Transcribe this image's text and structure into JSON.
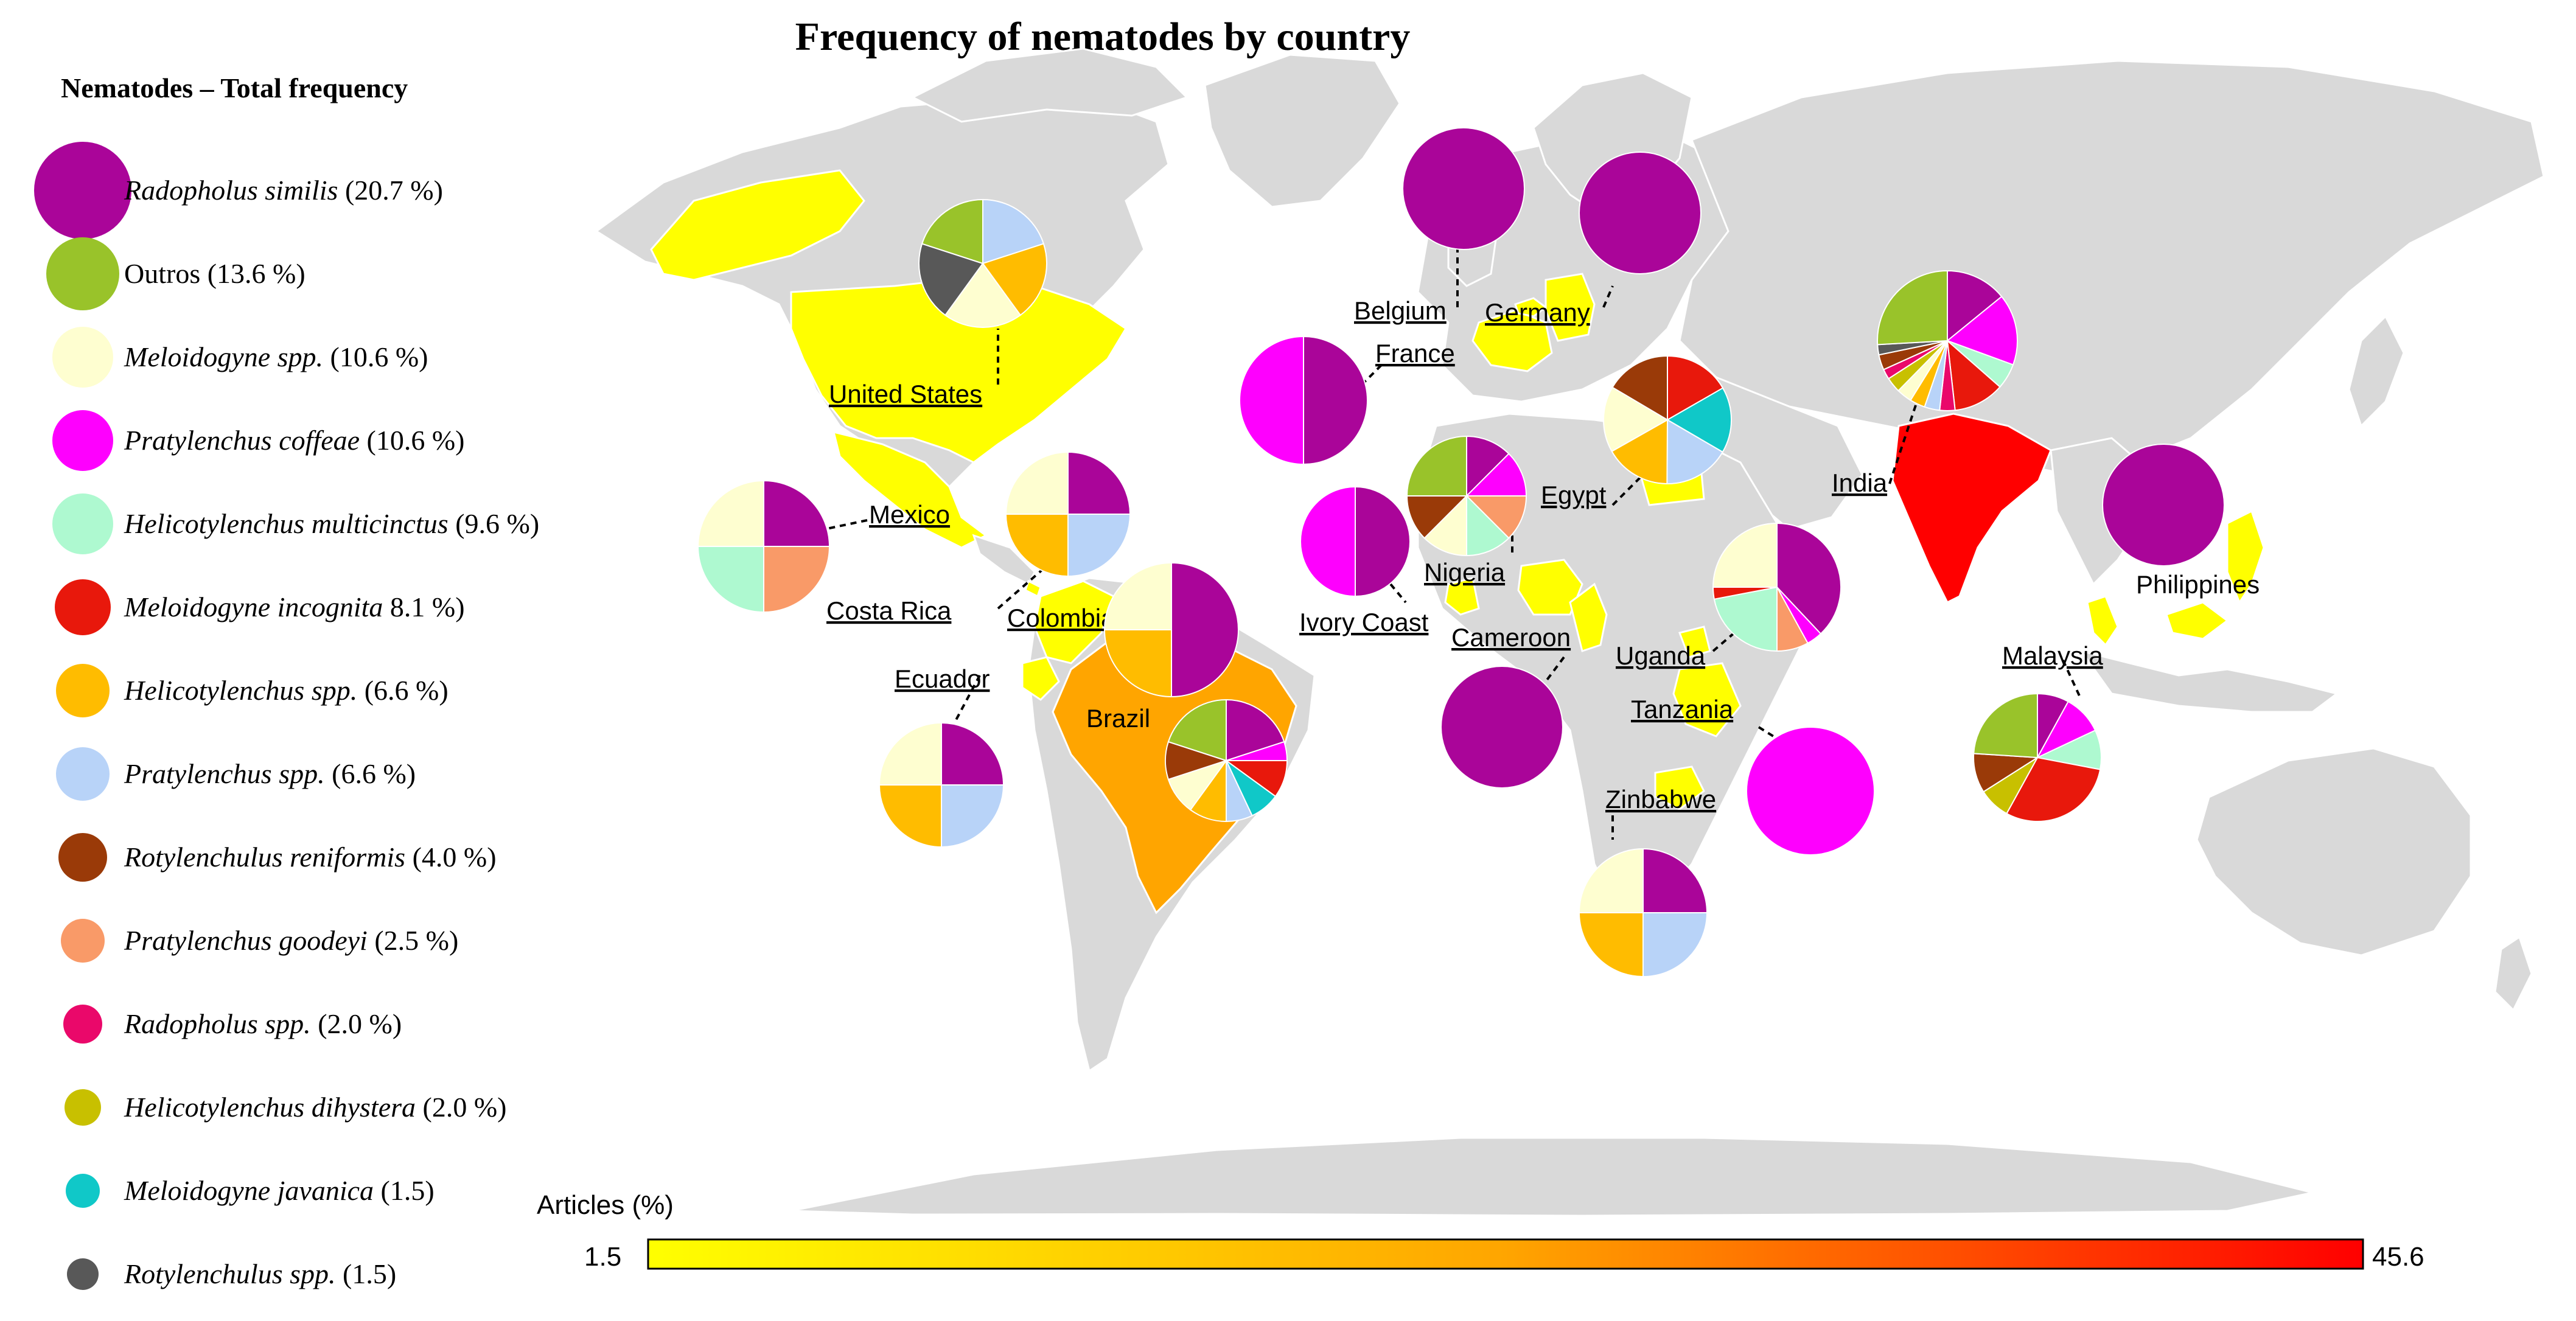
{
  "title": "Frequency of nematodes by country",
  "legend": {
    "heading": "Nematodes – Total frequency",
    "items": [
      {
        "name": "Radopholus similis",
        "pct": "(20.7 %)",
        "color": "#aa0599",
        "italic": true
      },
      {
        "name": "Outros",
        "pct": "(13.6 %)",
        "color": "#99c32a",
        "italic": false
      },
      {
        "name": "Meloidogyne spp.",
        "pct": "(10.6 %)",
        "color": "#fefed0",
        "italic": true
      },
      {
        "name": "Pratylenchus coffeae",
        "pct": "(10.6 %)",
        "color": "#fe00fe",
        "italic": true
      },
      {
        "name": "Helicotylenchus multicinctus",
        "pct": "(9.6 %)",
        "color": "#aef9d0",
        "italic": true
      },
      {
        "name": "Meloidogyne incognita",
        "pct": "8.1 %)",
        "color": "#e8180c",
        "italic": true
      },
      {
        "name": "Helicotylenchus spp.",
        "pct": "(6.6 %)",
        "color": "#ffbc00",
        "italic": true
      },
      {
        "name": "Pratylenchus spp.",
        "pct": "(6.6 %)",
        "color": "#b8d3f8",
        "italic": true
      },
      {
        "name": "Rotylenchulus reniformis",
        "pct": "(4.0 %)",
        "color": "#9a3a08",
        "italic": true
      },
      {
        "name": "Pratylenchus goodeyi",
        "pct": "(2.5 %)",
        "color": "#f99a68",
        "italic": true
      },
      {
        "name": "Radopholus spp.",
        "pct": "(2.0 %)",
        "color": "#ea086a",
        "italic": true
      },
      {
        "name": "Helicotylenchus dihystera",
        "pct": "(2.0 %)",
        "color": "#c8c000",
        "italic": true
      },
      {
        "name": "Meloidogyne javanica",
        "pct": "(1.5)",
        "color": "#10c8c8",
        "italic": true
      },
      {
        "name": "Rotylenchulus spp.",
        "pct": "(1.5)",
        "color": "#585858",
        "italic": true
      }
    ]
  },
  "colorbar": {
    "title": "Articles (%)",
    "min_label": "1.5",
    "max_label": "45.6",
    "min": 1.5,
    "max": 45.6,
    "gradient_start": "#ffff00",
    "gradient_mid": "#ffa500",
    "gradient_end": "#ff0000"
  },
  "map": {
    "ocean": "#ffffff",
    "land": "#d9d9d9",
    "border": "#ffffff",
    "highlight_low": "#ffff00",
    "highlight_mid": "#ffa500",
    "highlight_high": "#ff0000"
  },
  "countries": [
    {
      "name": "United States",
      "fill": "low",
      "value": 3.0
    },
    {
      "name": "Mexico",
      "fill": "low",
      "value": 3.0
    },
    {
      "name": "Costa Rica",
      "fill": "low",
      "value": 1.5
    },
    {
      "name": "Colombia",
      "fill": "low",
      "value": 3.0
    },
    {
      "name": "Ecuador",
      "fill": "low",
      "value": 3.0
    },
    {
      "name": "Brazil",
      "fill": "mid",
      "value": 20.0
    },
    {
      "name": "Belgium",
      "fill": "low",
      "value": 1.5
    },
    {
      "name": "Germany",
      "fill": "low",
      "value": 1.5
    },
    {
      "name": "France",
      "fill": "low",
      "value": 1.5
    },
    {
      "name": "Ivory Coast",
      "fill": "low",
      "value": 1.5
    },
    {
      "name": "Nigeria",
      "fill": "low",
      "value": 3.0
    },
    {
      "name": "Cameroon",
      "fill": "low",
      "value": 1.5
    },
    {
      "name": "Egypt",
      "fill": "low",
      "value": 3.0
    },
    {
      "name": "Uganda",
      "fill": "low",
      "value": 3.0
    },
    {
      "name": "Tanzania",
      "fill": "low",
      "value": 1.5
    },
    {
      "name": "Zinbabwe",
      "fill": "low",
      "value": 3.0
    },
    {
      "name": "India",
      "fill": "high",
      "value": 45.6
    },
    {
      "name": "Malaysia",
      "fill": "low",
      "value": 3.0
    },
    {
      "name": "Philippines",
      "fill": "low",
      "value": 1.5
    }
  ],
  "pies": [
    {
      "country": "United States",
      "slices": [
        [
          "#b8d3f8",
          25
        ],
        [
          "#ffbc00",
          25
        ],
        [
          "#fefed0",
          25
        ],
        [
          "#585858",
          25
        ],
        [
          "#99c32a",
          25
        ]
      ]
    },
    {
      "country": "Mexico",
      "slices": [
        [
          "#aa0599",
          25
        ],
        [
          "#f99a68",
          25
        ],
        [
          "#aef9d0",
          25
        ],
        [
          "#fefed0",
          25
        ]
      ]
    },
    {
      "country": "Colombia",
      "slices": [
        [
          "#aa0599",
          25
        ],
        [
          "#b8d3f8",
          25
        ],
        [
          "#ffbc00",
          25
        ],
        [
          "#fefed0",
          25
        ]
      ]
    },
    {
      "country": "Costa Rica",
      "slices": [
        [
          "#aa0599",
          50
        ],
        [
          "#ffbc00",
          25
        ],
        [
          "#fefed0",
          25
        ]
      ]
    },
    {
      "country": "Ecuador",
      "slices": [
        [
          "#aa0599",
          25
        ],
        [
          "#b8d3f8",
          25
        ],
        [
          "#ffbc00",
          25
        ],
        [
          "#fefed0",
          25
        ]
      ]
    },
    {
      "country": "Brazil",
      "slices": [
        [
          "#aa0599",
          20
        ],
        [
          "#fe00fe",
          5
        ],
        [
          "#e8180c",
          10
        ],
        [
          "#10c8c8",
          8
        ],
        [
          "#b8d3f8",
          7
        ],
        [
          "#ffbc00",
          10
        ],
        [
          "#fefed0",
          10
        ],
        [
          "#9a3a08",
          10
        ],
        [
          "#99c32a",
          20
        ]
      ]
    },
    {
      "country": "Belgium",
      "slices": [
        [
          "#aa0599",
          100
        ]
      ]
    },
    {
      "country": "Germany",
      "slices": [
        [
          "#aa0599",
          100
        ]
      ]
    },
    {
      "country": "France",
      "slices": [
        [
          "#aa0599",
          50
        ],
        [
          "#fe00fe",
          50
        ]
      ]
    },
    {
      "country": "Ivory Coast",
      "slices": [
        [
          "#aa0599",
          50
        ],
        [
          "#fe00fe",
          50
        ]
      ]
    },
    {
      "country": "Nigeria",
      "slices": [
        [
          "#aa0599",
          12.5
        ],
        [
          "#fe00fe",
          12.5
        ],
        [
          "#f99a68",
          12.5
        ],
        [
          "#aef9d0",
          12.5
        ],
        [
          "#fefed0",
          12.5
        ],
        [
          "#9a3a08",
          12.5
        ],
        [
          "#99c32a",
          25
        ]
      ]
    },
    {
      "country": "Cameroon",
      "slices": [
        [
          "#aa0599",
          100
        ]
      ]
    },
    {
      "country": "Egypt",
      "slices": [
        [
          "#e8180c",
          16.7
        ],
        [
          "#10c8c8",
          16.7
        ],
        [
          "#b8d3f8",
          16.7
        ],
        [
          "#ffbc00",
          16.7
        ],
        [
          "#fefed0",
          16.7
        ],
        [
          "#9a3a08",
          16.5
        ]
      ]
    },
    {
      "country": "Uganda",
      "slices": [
        [
          "#aa0599",
          38
        ],
        [
          "#fe00fe",
          4
        ],
        [
          "#f99a68",
          8
        ],
        [
          "#aef9d0",
          22
        ],
        [
          "#e8180c",
          3
        ],
        [
          "#fefed0",
          25
        ]
      ]
    },
    {
      "country": "Tanzania",
      "slices": [
        [
          "#fe00fe",
          100
        ]
      ]
    },
    {
      "country": "Zinbabwe",
      "slices": [
        [
          "#aa0599",
          25
        ],
        [
          "#b8d3f8",
          25
        ],
        [
          "#ffbc00",
          25
        ],
        [
          "#fefed0",
          25
        ]
      ]
    },
    {
      "country": "India",
      "slices": [
        [
          "#aa0599",
          12
        ],
        [
          "#fe00fe",
          14
        ],
        [
          "#aef9d0",
          5
        ],
        [
          "#e8180c",
          10
        ],
        [
          "#ea086a",
          3
        ],
        [
          "#b8d3f8",
          3
        ],
        [
          "#ffbc00",
          3
        ],
        [
          "#fefed0",
          3
        ],
        [
          "#c8c000",
          3
        ],
        [
          "#ea086a",
          2
        ],
        [
          "#9a3a08",
          3
        ],
        [
          "#585858",
          2
        ],
        [
          "#99c32a",
          22
        ]
      ]
    },
    {
      "country": "Philippines",
      "slices": [
        [
          "#aa0599",
          100
        ]
      ]
    },
    {
      "country": "Malaysia",
      "slices": [
        [
          "#aa0599",
          8
        ],
        [
          "#fe00fe",
          10
        ],
        [
          "#aef9d0",
          10
        ],
        [
          "#e8180c",
          30
        ],
        [
          "#c8c000",
          8
        ],
        [
          "#9a3a08",
          10
        ],
        [
          "#99c32a",
          24
        ]
      ]
    }
  ]
}
